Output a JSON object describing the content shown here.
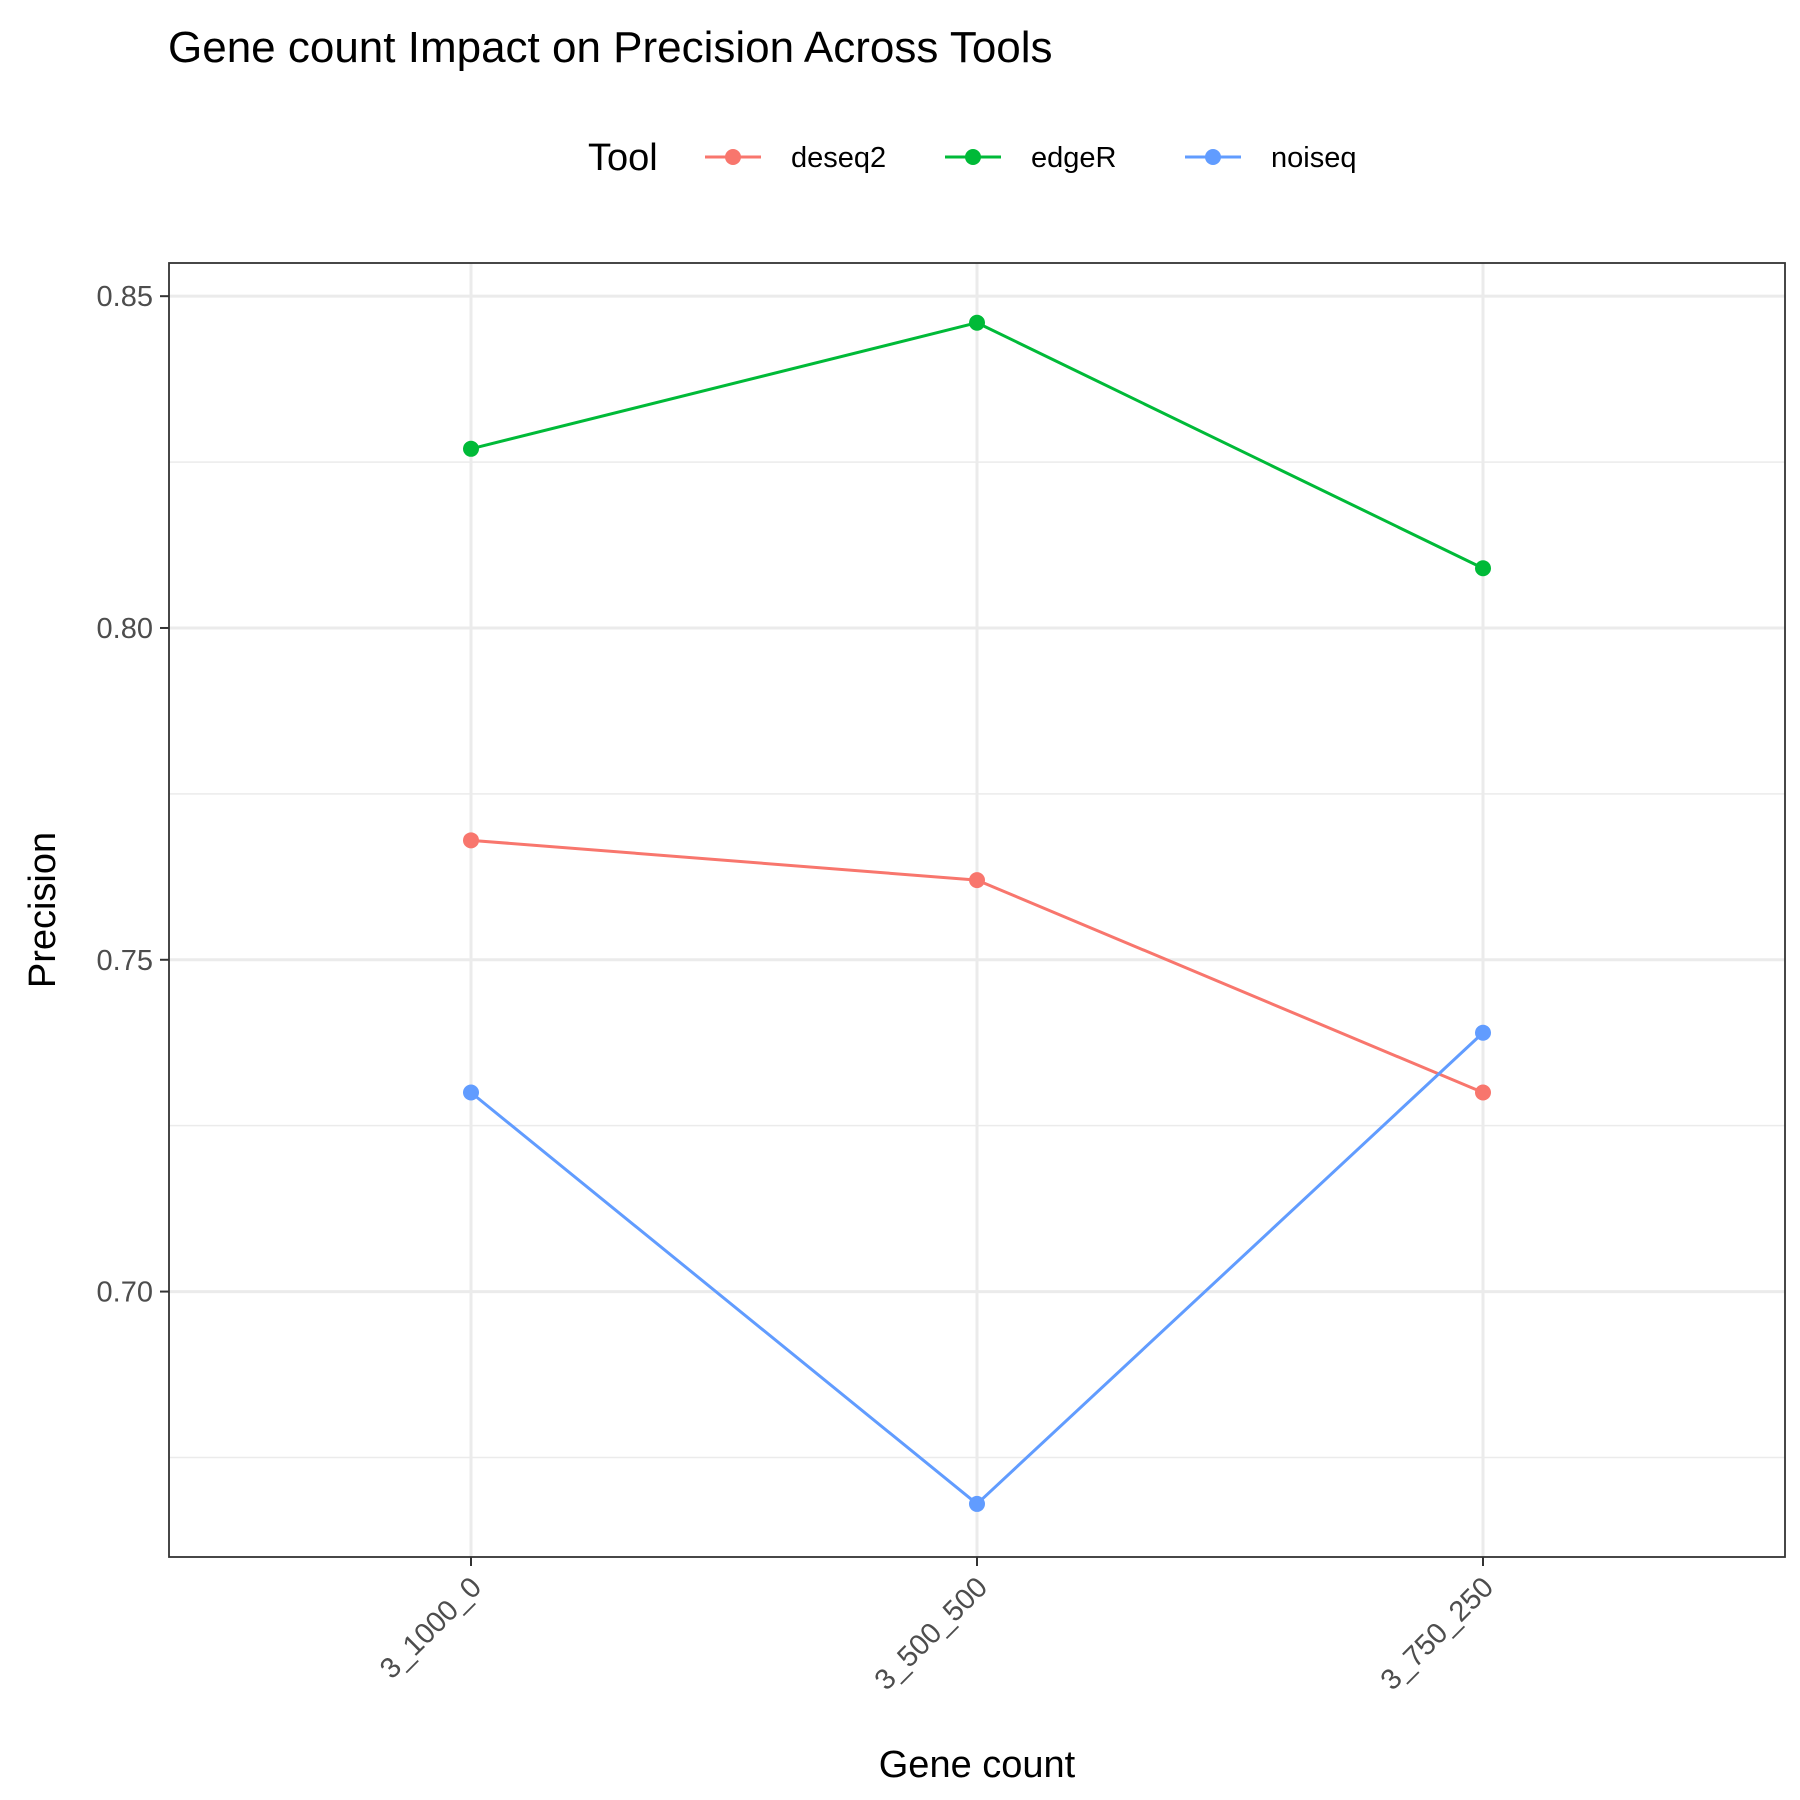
{
  "chart_data": {
    "type": "line",
    "title": "Gene count Impact on Precision Across Tools",
    "xlabel": "Gene count",
    "ylabel": "Precision",
    "categories": [
      "3_1000_0",
      "3_500_500",
      "3_750_250"
    ],
    "ylim": [
      0.66,
      0.855
    ],
    "yticks": [
      0.7,
      0.75,
      0.8,
      0.85
    ],
    "ytick_labels": [
      "0.70",
      "0.75",
      "0.80",
      "0.85"
    ],
    "grid": true,
    "legend": {
      "title": "Tool",
      "position": "top"
    },
    "series": [
      {
        "name": "deseq2",
        "color": "#F8766D",
        "values": [
          0.768,
          0.762,
          0.73
        ]
      },
      {
        "name": "edgeR",
        "color": "#00BA38",
        "values": [
          0.827,
          0.846,
          0.809
        ]
      },
      {
        "name": "noiseq",
        "color": "#619CFF",
        "values": [
          0.73,
          0.668,
          0.739
        ]
      }
    ]
  }
}
